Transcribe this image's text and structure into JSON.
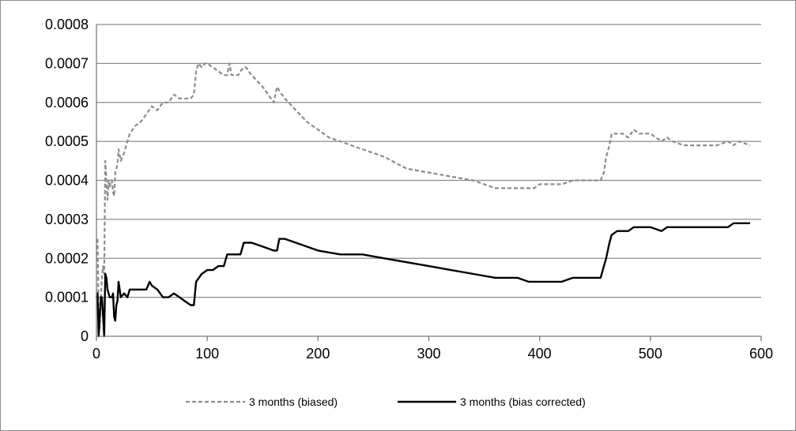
{
  "chart_data": {
    "type": "line",
    "title": "",
    "xlabel": "",
    "ylabel": "",
    "xlim": [
      0,
      600
    ],
    "ylim": [
      0,
      0.0008
    ],
    "x_ticks": [
      0,
      100,
      200,
      300,
      400,
      500,
      600
    ],
    "x_tick_labels": [
      "0",
      "100",
      "200",
      "300",
      "400",
      "500",
      "600"
    ],
    "y_ticks": [
      0,
      0.0001,
      0.0002,
      0.0003,
      0.0004,
      0.0005,
      0.0006,
      0.0007,
      0.0008
    ],
    "y_tick_labels": [
      "0",
      "0.0001",
      "0.0002",
      "0.0003",
      "0.0004",
      "0.0005",
      "0.0006",
      "0.0007",
      "0.0008"
    ],
    "grid": "horizontal",
    "legend_position": "bottom",
    "series": [
      {
        "name": "3 months (biased)",
        "color": "#8c8c8c",
        "style": "dashed",
        "x": [
          1,
          2,
          3,
          4,
          5,
          6,
          7,
          8,
          9,
          10,
          11,
          12,
          13,
          14,
          15,
          16,
          17,
          18,
          19,
          20,
          22,
          25,
          28,
          30,
          35,
          40,
          45,
          50,
          55,
          60,
          65,
          70,
          75,
          80,
          85,
          88,
          90,
          92,
          95,
          98,
          100,
          105,
          110,
          115,
          118,
          120,
          122,
          125,
          128,
          130,
          133,
          135,
          140,
          150,
          160,
          163,
          165,
          170,
          180,
          190,
          200,
          210,
          220,
          230,
          240,
          250,
          260,
          280,
          300,
          320,
          340,
          360,
          380,
          390,
          395,
          400,
          410,
          420,
          430,
          440,
          450,
          455,
          458,
          460,
          463,
          465,
          470,
          475,
          480,
          485,
          490,
          500,
          510,
          515,
          520,
          530,
          540,
          550,
          560,
          570,
          575,
          580,
          590
        ],
        "y": [
          0.00025,
          5e-05,
          2e-05,
          0.0001,
          0.00015,
          0.00018,
          0.00016,
          0.00045,
          0.0004,
          0.00035,
          0.0004,
          0.00038,
          0.0004,
          0.0004,
          0.00037,
          0.00036,
          0.00042,
          0.00043,
          0.00044,
          0.00048,
          0.00045,
          0.00047,
          0.0005,
          0.00052,
          0.00054,
          0.00055,
          0.00057,
          0.00059,
          0.00058,
          0.0006,
          0.0006,
          0.00062,
          0.00061,
          0.00061,
          0.00061,
          0.00062,
          0.00068,
          0.0007,
          0.00069,
          0.0007,
          0.0007,
          0.00069,
          0.00068,
          0.00067,
          0.00067,
          0.0007,
          0.00067,
          0.00067,
          0.00067,
          0.00068,
          0.00069,
          0.00069,
          0.00067,
          0.00064,
          0.0006,
          0.00064,
          0.00063,
          0.00061,
          0.00058,
          0.00055,
          0.00053,
          0.00051,
          0.0005,
          0.00049,
          0.00048,
          0.00047,
          0.00046,
          0.00043,
          0.00042,
          0.00041,
          0.0004,
          0.00038,
          0.00038,
          0.00038,
          0.00038,
          0.00039,
          0.00039,
          0.00039,
          0.0004,
          0.0004,
          0.0004,
          0.0004,
          0.00042,
          0.00046,
          0.00049,
          0.00052,
          0.00052,
          0.00052,
          0.00051,
          0.00053,
          0.00052,
          0.00052,
          0.0005,
          0.00051,
          0.0005,
          0.00049,
          0.00049,
          0.00049,
          0.00049,
          0.0005,
          0.00049,
          0.0005,
          0.00049
        ]
      },
      {
        "name": "3 months (bias corrected)",
        "color": "#000000",
        "style": "solid",
        "x": [
          0,
          1,
          2,
          3,
          4,
          5,
          6,
          7,
          8,
          9,
          10,
          12,
          14,
          15,
          16,
          17,
          18,
          19,
          20,
          22,
          25,
          28,
          30,
          35,
          40,
          45,
          48,
          50,
          55,
          60,
          65,
          70,
          75,
          80,
          85,
          88,
          90,
          95,
          100,
          105,
          110,
          115,
          118,
          120,
          125,
          130,
          133,
          135,
          140,
          150,
          160,
          163,
          165,
          170,
          180,
          200,
          220,
          230,
          240,
          260,
          280,
          300,
          320,
          340,
          360,
          380,
          390,
          395,
          400,
          410,
          420,
          430,
          440,
          450,
          455,
          458,
          460,
          463,
          465,
          470,
          480,
          485,
          490,
          500,
          510,
          515,
          520,
          530,
          540,
          560,
          570,
          575,
          580,
          590
        ],
        "y": [
          0.0001,
          0.00011,
          0.0,
          5e-05,
          0.0001,
          0.0001,
          5e-05,
          0.0,
          0.00016,
          0.00015,
          0.00012,
          0.0001,
          0.0001,
          0.00011,
          5e-05,
          4e-05,
          8e-05,
          9e-05,
          0.00014,
          0.0001,
          0.00011,
          0.0001,
          0.00012,
          0.00012,
          0.00012,
          0.00012,
          0.00014,
          0.00013,
          0.00012,
          0.0001,
          0.0001,
          0.00011,
          0.0001,
          9e-05,
          8e-05,
          8e-05,
          0.00014,
          0.00016,
          0.00017,
          0.00017,
          0.00018,
          0.00018,
          0.00021,
          0.00021,
          0.00021,
          0.00021,
          0.00024,
          0.00024,
          0.00024,
          0.00023,
          0.00022,
          0.00022,
          0.00025,
          0.00025,
          0.00024,
          0.00022,
          0.00021,
          0.00021,
          0.00021,
          0.0002,
          0.00019,
          0.00018,
          0.00017,
          0.00016,
          0.00015,
          0.00015,
          0.00014,
          0.00014,
          0.00014,
          0.00014,
          0.00014,
          0.00015,
          0.00015,
          0.00015,
          0.00015,
          0.00018,
          0.0002,
          0.00024,
          0.00026,
          0.00027,
          0.00027,
          0.00028,
          0.00028,
          0.00028,
          0.00027,
          0.00028,
          0.00028,
          0.00028,
          0.00028,
          0.00028,
          0.00028,
          0.00029,
          0.00029,
          0.00029
        ]
      }
    ]
  }
}
